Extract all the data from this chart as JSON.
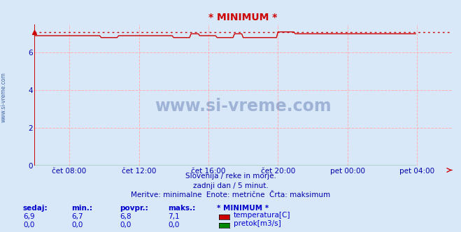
{
  "title": "* MINIMUM *",
  "bg_color": "#d8e8f8",
  "plot_bg_color": "#d8e8f8",
  "grid_color": "#ffb0b0",
  "title_color": "#cc0000",
  "text_color": "#0000aa",
  "footer_color": "#0000cc",
  "subtitle_lines": [
    "Slovenija / reke in morje.",
    "zadnji dan / 5 minut.",
    "Meritve: minimalne  Enote: metrične  Črta: maksimum"
  ],
  "x_tick_labels": [
    "čet 08:00",
    "čet 12:00",
    "čet 16:00",
    "čet 20:00",
    "pet 00:00",
    "pet 04:00"
  ],
  "y_ticks": [
    0,
    2,
    4,
    6
  ],
  "ylim": [
    0,
    7.5
  ],
  "xlim": [
    0,
    288
  ],
  "temp_color": "#cc0000",
  "pretok_color": "#008800",
  "max_line_y": 7.1,
  "watermark_text": "www.si-vreme.com",
  "watermark_color": "#1a3a8a",
  "left_label": "www.si-vreme.com",
  "left_label_color": "#4466aa",
  "footer_headers": [
    "sedaj:",
    "min.:",
    "povpr.:",
    "maks.:",
    "* MINIMUM *"
  ],
  "footer_temp": [
    "6,9",
    "6,7",
    "6,8",
    "7,1"
  ],
  "footer_pretok": [
    "0,0",
    "0,0",
    "0,0",
    "0,0"
  ],
  "legend_labels": [
    "temperatura[C]",
    "pretok[m3/s]"
  ],
  "legend_colors": [
    "#cc0000",
    "#008800"
  ],
  "temp_data": [
    6.9,
    6.9,
    6.9,
    6.9,
    6.9,
    6.9,
    6.9,
    6.9,
    6.9,
    6.9,
    6.9,
    6.9,
    6.9,
    6.9,
    6.9,
    6.9,
    6.9,
    6.9,
    6.9,
    6.9,
    6.9,
    6.9,
    6.9,
    6.9,
    6.9,
    6.9,
    6.9,
    6.9,
    6.9,
    6.9,
    6.9,
    6.9,
    6.9,
    6.9,
    6.9,
    6.9,
    6.9,
    6.9,
    6.9,
    6.9,
    6.9,
    6.9,
    6.9,
    6.9,
    6.9,
    6.9,
    6.8,
    6.8,
    6.8,
    6.8,
    6.8,
    6.8,
    6.8,
    6.8,
    6.8,
    6.8,
    6.8,
    6.8,
    6.9,
    6.9,
    6.9,
    6.9,
    6.9,
    6.9,
    6.9,
    6.9,
    6.9,
    6.9,
    6.9,
    6.9,
    6.9,
    6.9,
    6.9,
    6.9,
    6.9,
    6.9,
    6.9,
    6.9,
    6.9,
    6.9,
    6.9,
    6.9,
    6.9,
    6.9,
    6.9,
    6.9,
    6.9,
    6.9,
    6.9,
    6.9,
    6.9,
    6.9,
    6.9,
    6.9,
    6.9,
    6.9,
    6.8,
    6.8,
    6.8,
    6.8,
    6.8,
    6.8,
    6.8,
    6.8,
    6.8,
    6.8,
    6.8,
    6.8,
    7.0,
    7.0,
    7.0,
    7.0,
    7.0,
    7.0,
    6.9,
    6.9,
    6.9,
    6.9,
    6.9,
    6.9,
    6.9,
    6.9,
    6.9,
    6.9,
    6.9,
    6.9,
    6.8,
    6.8,
    6.8,
    6.8,
    6.8,
    6.8,
    6.8,
    6.8,
    6.8,
    6.8,
    6.8,
    6.8,
    7.0,
    7.0,
    7.0,
    7.0,
    7.0,
    7.0,
    6.8,
    6.8,
    6.8,
    6.8,
    6.8,
    6.8,
    6.8,
    6.8,
    6.8,
    6.8,
    6.8,
    6.8,
    6.8,
    6.8,
    6.8,
    6.8,
    6.8,
    6.8,
    6.8,
    6.8,
    6.8,
    6.8,
    6.8,
    6.8,
    7.1,
    7.1,
    7.1,
    7.1,
    7.1,
    7.1,
    7.1,
    7.1,
    7.1,
    7.1,
    7.1,
    7.1,
    7.0,
    7.0,
    7.0,
    7.0,
    7.0,
    7.0,
    7.0,
    7.0,
    7.0,
    7.0,
    7.0,
    7.0,
    7.0,
    7.0,
    7.0,
    7.0,
    7.0,
    7.0,
    7.0,
    7.0,
    7.0,
    7.0,
    7.0,
    7.0,
    7.0,
    7.0,
    7.0,
    7.0,
    7.0,
    7.0,
    7.0,
    7.0,
    7.0,
    7.0,
    7.0,
    7.0,
    7.0,
    7.0,
    7.0,
    7.0,
    7.0,
    7.0,
    7.0,
    7.0,
    7.0,
    7.0,
    7.0,
    7.0,
    7.0,
    7.0,
    7.0,
    7.0,
    7.0,
    7.0,
    7.0,
    7.0,
    7.0,
    7.0,
    7.0,
    7.0,
    7.0,
    7.0,
    7.0,
    7.0,
    7.0,
    7.0,
    7.0,
    7.0,
    7.0,
    7.0,
    7.0,
    7.0,
    7.0,
    7.0,
    7.0,
    7.0,
    7.0,
    7.0,
    7.0,
    7.0,
    7.0,
    7.0,
    7.0,
    7.0
  ]
}
